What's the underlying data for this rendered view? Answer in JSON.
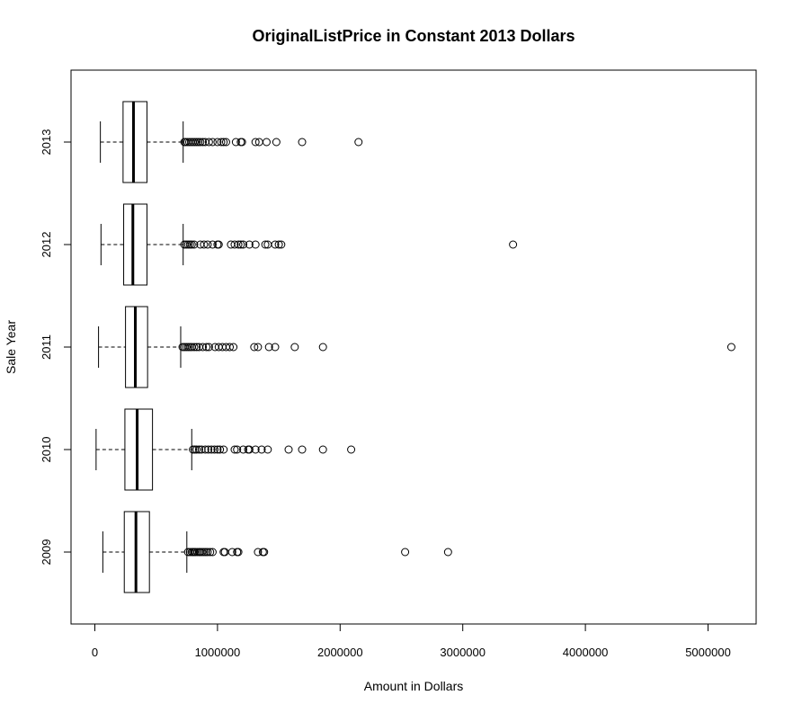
{
  "chart_data": {
    "type": "boxplot",
    "orientation": "horizontal",
    "title": "OriginalListPrice in Constant 2013 Dollars",
    "xlabel": "Amount in Dollars",
    "ylabel": "Sale Year",
    "xlim": [
      -200000,
      5400000
    ],
    "x_ticks": [
      0,
      1000000,
      2000000,
      3000000,
      4000000,
      5000000
    ],
    "x_tick_labels": [
      "0",
      "1000000",
      "2000000",
      "3000000",
      "4000000",
      "5000000"
    ],
    "categories": [
      "2009",
      "2010",
      "2011",
      "2012",
      "2013"
    ],
    "boxes": [
      {
        "year": "2009",
        "whisker_low": 65000,
        "q1": 240000,
        "median": 335000,
        "q3": 445000,
        "whisker_high": 750000,
        "outliers": [
          760000,
          775000,
          790000,
          800000,
          810000,
          820000,
          835000,
          850000,
          860000,
          875000,
          890000,
          905000,
          920000,
          940000,
          960000,
          1050000,
          1060000,
          1120000,
          1160000,
          1170000,
          1330000,
          1370000,
          1380000,
          2530000,
          2880000
        ]
      },
      {
        "year": "2010",
        "whisker_low": 10000,
        "q1": 245000,
        "median": 345000,
        "q3": 470000,
        "whisker_high": 790000,
        "outliers": [
          800000,
          815000,
          830000,
          850000,
          870000,
          900000,
          925000,
          950000,
          975000,
          1000000,
          1020000,
          1050000,
          1140000,
          1160000,
          1210000,
          1250000,
          1260000,
          1310000,
          1360000,
          1410000,
          1580000,
          1690000,
          1860000,
          2090000
        ]
      },
      {
        "year": "2011",
        "whisker_low": 30000,
        "q1": 250000,
        "median": 330000,
        "q3": 430000,
        "whisker_high": 700000,
        "outliers": [
          715000,
          730000,
          745000,
          760000,
          775000,
          790000,
          810000,
          830000,
          850000,
          880000,
          910000,
          930000,
          980000,
          1010000,
          1040000,
          1070000,
          1100000,
          1130000,
          1300000,
          1330000,
          1420000,
          1470000,
          1630000,
          1860000,
          5190000
        ]
      },
      {
        "year": "2012",
        "whisker_low": 50000,
        "q1": 235000,
        "median": 310000,
        "q3": 425000,
        "whisker_high": 720000,
        "outliers": [
          730000,
          745000,
          760000,
          775000,
          790000,
          810000,
          860000,
          890000,
          920000,
          960000,
          1000000,
          1010000,
          1110000,
          1140000,
          1170000,
          1190000,
          1210000,
          1260000,
          1310000,
          1390000,
          1410000,
          1470000,
          1500000,
          1520000,
          3410000
        ]
      },
      {
        "year": "2013",
        "whisker_low": 45000,
        "q1": 230000,
        "median": 315000,
        "q3": 425000,
        "whisker_high": 720000,
        "outliers": [
          730000,
          740000,
          755000,
          770000,
          785000,
          800000,
          815000,
          830000,
          845000,
          860000,
          880000,
          900000,
          930000,
          960000,
          1000000,
          1030000,
          1050000,
          1070000,
          1150000,
          1190000,
          1200000,
          1310000,
          1340000,
          1400000,
          1480000,
          1690000,
          2150000
        ]
      }
    ],
    "colors": {
      "line": "#000000",
      "box_fill": "#ffffff"
    }
  }
}
